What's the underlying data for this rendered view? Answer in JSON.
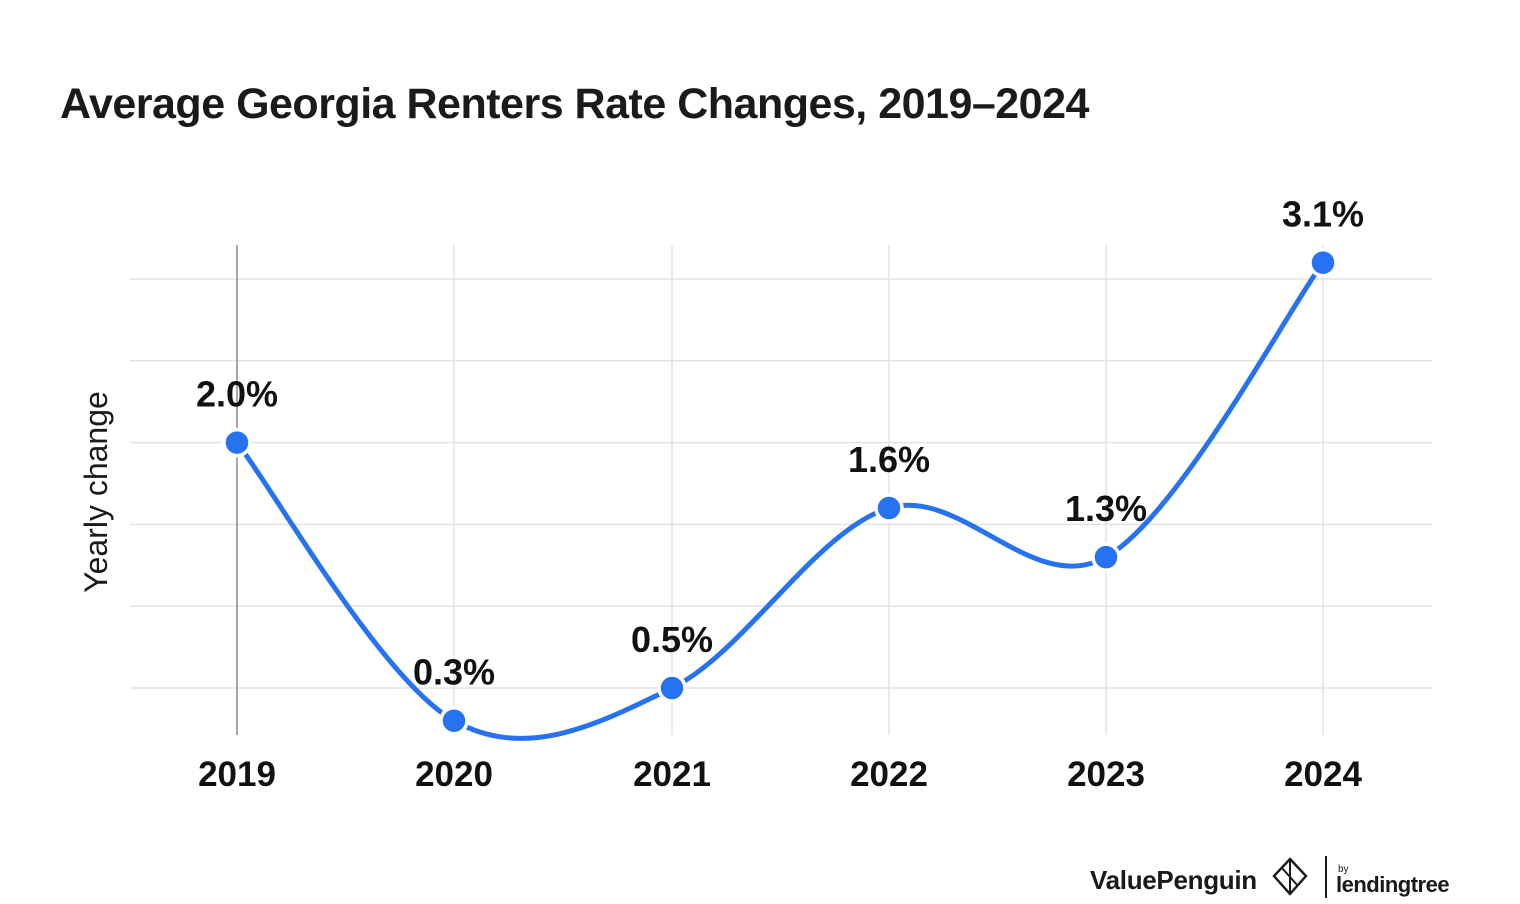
{
  "chart_data": {
    "type": "line",
    "title": "Average Georgia Renters Rate Changes, 2019–2024",
    "xlabel": "",
    "ylabel": "Yearly change",
    "categories": [
      "2019",
      "2020",
      "2021",
      "2022",
      "2023",
      "2024"
    ],
    "values": [
      2.0,
      0.3,
      0.5,
      1.6,
      1.3,
      3.1
    ],
    "data_labels": [
      "2.0%",
      "0.3%",
      "0.5%",
      "1.6%",
      "1.3%",
      "3.1%"
    ],
    "ylim": [
      0.5,
      3.0
    ],
    "grid": true,
    "line_color": "#2672f0",
    "point_color": "#2672f0",
    "grid_color": "#e3e3e3"
  },
  "branding": {
    "valuepenguin": "ValuePenguin",
    "by": "by",
    "lendingtree": "lendingtree"
  }
}
